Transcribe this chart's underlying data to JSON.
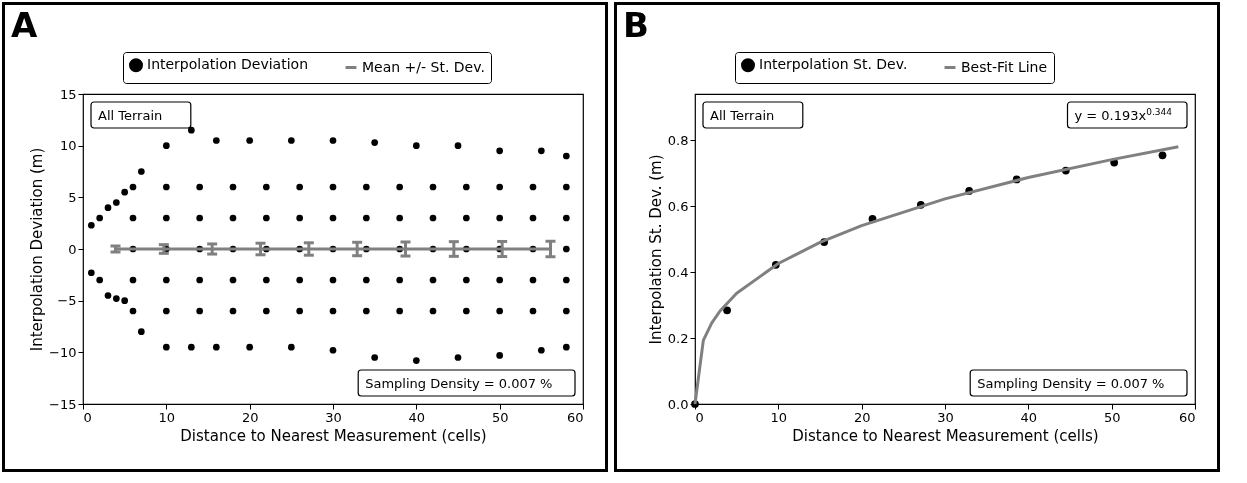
{
  "chart_data": [
    {
      "type": "scatter",
      "title": "A",
      "xlabel": "Distance to Nearest Measurement (cells)",
      "ylabel": "Interpolation Deviation (m)",
      "xlim": [
        0,
        60
      ],
      "ylim": [
        -15,
        15
      ],
      "xticks": [
        0,
        10,
        20,
        30,
        40,
        50,
        60
      ],
      "yticks": [
        -15,
        -10,
        -5,
        0,
        5,
        10,
        15
      ],
      "grid": false,
      "legend": "top",
      "annotations": [
        "All Terrain",
        "Sampling Density = 0.007 %"
      ],
      "series": [
        {
          "name": "Interpolation Deviation",
          "type": "scatter",
          "marker": "circle",
          "color": "#000000",
          "x": [
            1,
            2,
            3,
            4,
            5,
            7,
            10,
            13,
            16,
            20,
            25,
            30,
            35,
            40,
            45,
            50,
            55,
            58,
            1,
            2,
            3,
            4,
            5,
            7,
            10,
            13,
            16,
            20,
            25,
            30,
            35,
            40,
            45,
            50,
            55,
            58,
            6,
            6,
            6,
            6,
            6,
            10,
            10,
            10,
            10,
            10,
            14,
            14,
            14,
            14,
            14,
            18,
            18,
            18,
            18,
            18,
            22,
            22,
            22,
            22,
            22,
            26,
            26,
            26,
            26,
            26,
            30,
            30,
            30,
            30,
            30,
            34,
            34,
            34,
            34,
            34,
            38,
            38,
            38,
            38,
            38,
            42,
            42,
            42,
            42,
            42,
            46,
            46,
            46,
            46,
            46,
            50,
            50,
            50,
            50,
            50,
            54,
            54,
            54,
            54,
            54,
            58,
            58,
            58,
            58,
            58
          ],
          "values": [
            2.3,
            3,
            4,
            4.5,
            5.5,
            7.5,
            10,
            11.5,
            10.5,
            10.5,
            10.5,
            10.5,
            10.3,
            10,
            10,
            9.5,
            9.5,
            9,
            -2.3,
            -3,
            -4.5,
            -4.8,
            -5,
            -8,
            -9.5,
            -9.5,
            -9.5,
            -9.5,
            -9.5,
            -9.8,
            -10.5,
            -10.8,
            -10.5,
            -10.3,
            -9.8,
            -9.5,
            -6,
            -3,
            0,
            3,
            6,
            -6,
            -3,
            0,
            3,
            6,
            -6,
            -3,
            0,
            3,
            6,
            -6,
            -3,
            0,
            3,
            6,
            -6,
            -3,
            0,
            3,
            6,
            -6,
            -3,
            0,
            3,
            6,
            -6,
            -3,
            0,
            3,
            6,
            -6,
            -3,
            0,
            3,
            6,
            -6,
            -3,
            0,
            3,
            6,
            -6,
            -3,
            0,
            3,
            6,
            -6,
            -3,
            0,
            3,
            6,
            -6,
            -3,
            0,
            3,
            6,
            -6,
            -3,
            0,
            3,
            6,
            -6,
            -3,
            0,
            3,
            6
          ]
        },
        {
          "name": "Mean +/- St. Dev.",
          "type": "line",
          "marker": "none",
          "color": "#808080",
          "x": [
            3.9,
            9.7,
            15.5,
            21.3,
            27.1,
            32.9,
            38.7,
            44.5,
            50.3,
            56.1
          ],
          "values": [
            0,
            0,
            0,
            0,
            0,
            0,
            0,
            0,
            0,
            0
          ],
          "errors": [
            0.29,
            0.42,
            0.49,
            0.56,
            0.6,
            0.65,
            0.68,
            0.71,
            0.73,
            0.75
          ]
        }
      ]
    },
    {
      "type": "scatter",
      "title": "B",
      "xlabel": "Distance to Nearest Measurement (cells)",
      "ylabel": "Interpolation St. Dev. (m)",
      "xlim": [
        0,
        60
      ],
      "ylim": [
        0,
        0.94
      ],
      "xticks": [
        0,
        10,
        20,
        30,
        40,
        50,
        60
      ],
      "yticks": [
        {
          "value": 0,
          "label": "0.0"
        },
        0.2,
        0.4,
        0.6,
        0.8
      ],
      "grid": false,
      "legend": "top",
      "annotations": [
        "All Terrain",
        "y = 0.193x$^{0.344}$",
        "Sampling Density = 0.007 %"
      ],
      "series": [
        {
          "name": "Interpolation St. Dev.",
          "type": "scatter",
          "marker": "circle",
          "color": "#000000",
          "x": [
            0,
            3.85,
            9.7,
            15.5,
            21.3,
            27.1,
            32.9,
            38.6,
            44.5,
            50.3,
            56.1
          ],
          "values": [
            0,
            0.284,
            0.422,
            0.491,
            0.561,
            0.604,
            0.646,
            0.681,
            0.708,
            0.732,
            0.754
          ]
        },
        {
          "name": "Best-Fit Line",
          "type": "line",
          "marker": "none",
          "color": "#808080",
          "x": [
            0,
            1,
            2,
            3,
            5,
            10,
            15,
            20,
            30,
            40,
            50,
            58
          ],
          "values": [
            0,
            0.193,
            0.245,
            0.282,
            0.336,
            0.426,
            0.49,
            0.541,
            0.622,
            0.687,
            0.741,
            0.78
          ]
        }
      ]
    }
  ]
}
